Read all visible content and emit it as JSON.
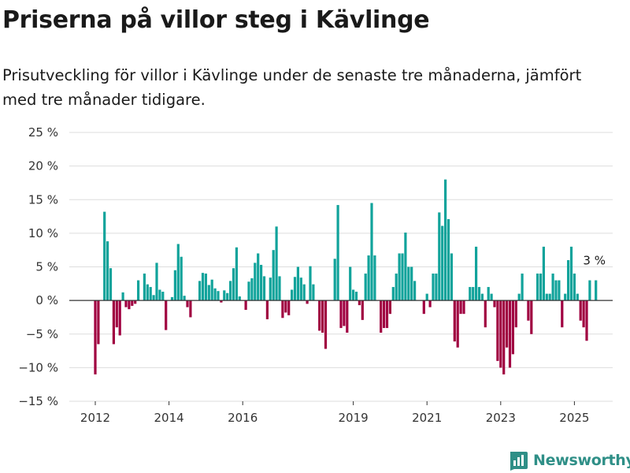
{
  "title": "Priserna på villor steg i Kävlinge",
  "subtitle": "Prisutveckling för villor i Kävlinge under de senaste tre månaderna, jämfört med tre månader tidigare.",
  "brand": "Newsworthy",
  "colors": {
    "positive": "#11a39b",
    "negative": "#a00040",
    "grid": "#dddddd",
    "zero": "#333333",
    "brand": "#2f8f87"
  },
  "chart_data": {
    "type": "bar",
    "x_start": "2012-01",
    "x_step": "month",
    "ylim": [
      -15,
      25
    ],
    "yticks": [
      -15,
      -10,
      -5,
      0,
      5,
      10,
      15,
      20,
      25
    ],
    "ytick_labels": [
      "−15 %",
      "−10 %",
      "−5 %",
      "0 %",
      "5 %",
      "10 %",
      "15 %",
      "20 %",
      "25 %"
    ],
    "xticks": [
      "2012",
      "2014",
      "2016",
      "2019",
      "2021",
      "2023",
      "2025"
    ],
    "grid": true,
    "end_label": "3 %",
    "values": [
      -11,
      -6.5,
      null,
      13.2,
      8.8,
      4.8,
      -6.5,
      -4,
      -5.2,
      1.2,
      -1,
      -1.3,
      -0.8,
      -0.5,
      3,
      null,
      4,
      2.4,
      2,
      0.8,
      5.6,
      1.6,
      1.3,
      -4.4,
      null,
      0.5,
      4.5,
      8.4,
      6.5,
      0.7,
      -1,
      -2.5,
      null,
      null,
      2.9,
      4.1,
      4,
      2.3,
      3.1,
      1.8,
      1.4,
      -0.3,
      1.5,
      1.1,
      2.9,
      4.8,
      7.9,
      0.6,
      null,
      -1.4,
      2.8,
      3.3,
      5.6,
      7,
      5.3,
      3.6,
      -2.8,
      3.4,
      7.5,
      11,
      3.6,
      -2.6,
      -1.8,
      -2.2,
      1.6,
      3.5,
      5,
      3.4,
      2.4,
      -0.5,
      5.1,
      2.4,
      null,
      -4.5,
      -4.8,
      -7.2,
      null,
      null,
      6.2,
      14.2,
      -4.1,
      -3.8,
      -4.8,
      5,
      1.6,
      1.3,
      -0.7,
      -2.9,
      4,
      6.7,
      14.5,
      6.7,
      null,
      -4.8,
      -4.1,
      -4.1,
      -2,
      2,
      4,
      7,
      7,
      10.1,
      5,
      5,
      2.9,
      null,
      null,
      -2,
      1,
      -1,
      4,
      4,
      13.1,
      11.1,
      18,
      12.1,
      7,
      -6.1,
      -7,
      -2,
      -2,
      null,
      2,
      2,
      8,
      2,
      1,
      -4,
      2,
      1,
      -1,
      -9,
      -10,
      -11,
      -7,
      -10,
      -8,
      -4,
      1,
      4,
      null,
      -3,
      -5,
      null,
      4,
      4,
      8,
      1,
      1,
      4,
      3,
      3,
      -4,
      1,
      6,
      8,
      4,
      1,
      -3,
      -4,
      -6,
      3,
      null,
      3
    ]
  }
}
